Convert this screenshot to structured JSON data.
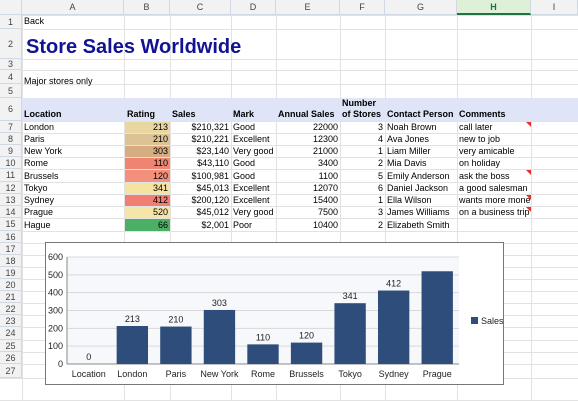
{
  "columns": [
    "A",
    "B",
    "C",
    "D",
    "E",
    "F",
    "G",
    "H",
    "I"
  ],
  "selected_column": "H",
  "rows": [
    "1",
    "2",
    "3",
    "4",
    "5",
    "6",
    "7",
    "8",
    "9",
    "10",
    "11",
    "12",
    "13",
    "14",
    "15",
    "16",
    "17",
    "18",
    "19",
    "20",
    "21",
    "22",
    "23",
    "24",
    "25",
    "26",
    "27"
  ],
  "back_link": "Back",
  "title": "Store Sales Worldwide",
  "subtitle": "Major stores only",
  "headers": {
    "location": "Location",
    "rating": "Rating",
    "sales": "Sales",
    "mark": "Mark",
    "annual_sales": "Annual Sales",
    "stores_line1": "Number",
    "stores_line2": "of Stores",
    "contact": "Contact Person",
    "comments": "Comments"
  },
  "table": [
    {
      "location": "London",
      "rating": "213",
      "sales": "$210,321",
      "mark": "Good",
      "annual": "22000",
      "stores": "3",
      "contact": "Noah Brown",
      "comment": "call later",
      "rating_color": "#e8d7a0",
      "has_note": true
    },
    {
      "location": "Paris",
      "rating": "210",
      "sales": "$210,221",
      "mark": "Excellent",
      "annual": "12300",
      "stores": "4",
      "contact": "Ava Jones",
      "comment": "new to job",
      "rating_color": "#dcc294",
      "has_note": false
    },
    {
      "location": "New York",
      "rating": "303",
      "sales": "$23,140",
      "mark": "Very good",
      "annual": "21000",
      "stores": "1",
      "contact": "Liam Miller",
      "comment": "very amicable",
      "rating_color": "#d6ad80",
      "has_note": false
    },
    {
      "location": "Rome",
      "rating": "110",
      "sales": "$43,110",
      "mark": "Good",
      "annual": "3400",
      "stores": "2",
      "contact": "Mia Davis",
      "comment": "on holiday",
      "rating_color": "#f08472",
      "has_note": false
    },
    {
      "location": "Brussels",
      "rating": "120",
      "sales": "$100,981",
      "mark": "Good",
      "annual": "1100",
      "stores": "5",
      "contact": "Emily Anderson",
      "comment": "ask the boss",
      "rating_color": "#f2907c",
      "has_note": true
    },
    {
      "location": "Tokyo",
      "rating": "341",
      "sales": "$45,013",
      "mark": "Excellent",
      "annual": "12070",
      "stores": "6",
      "contact": "Daniel Jackson",
      "comment": "a good salesman",
      "rating_color": "#f5e4a0",
      "has_note": false
    },
    {
      "location": "Sydney",
      "rating": "412",
      "sales": "$200,120",
      "mark": "Excellent",
      "annual": "15400",
      "stores": "1",
      "contact": "Ella Wilson",
      "comment": "wants more money",
      "rating_color": "#f07e72",
      "has_note": true
    },
    {
      "location": "Prague",
      "rating": "520",
      "sales": "$45,012",
      "mark": "Very good",
      "annual": "7500",
      "stores": "3",
      "contact": "James Williams",
      "comment": "on a business trip",
      "rating_color": "#f5e6a8",
      "has_note": true
    },
    {
      "location": "Hague",
      "rating": "66",
      "sales": "$2,001",
      "mark": "Poor",
      "annual": "10400",
      "stores": "2",
      "contact": "Elizabeth Smith",
      "comment": "",
      "rating_color": "#4caf66",
      "has_note": false
    }
  ],
  "chart_data": {
    "type": "bar",
    "categories": [
      "Location",
      "London",
      "Paris",
      "New York",
      "Rome",
      "Brussels",
      "Tokyo",
      "Sydney",
      "Prague"
    ],
    "series": [
      {
        "name": "Sales",
        "values": [
          0,
          213,
          210,
          303,
          110,
          120,
          341,
          412,
          520
        ]
      }
    ],
    "data_labels": [
      "0",
      "213",
      "210",
      "303",
      "110",
      "120",
      "341",
      "412",
      ""
    ],
    "ylim": [
      0,
      600
    ],
    "yticks": [
      "600",
      "500",
      "400",
      "300",
      "200",
      "100",
      "0"
    ],
    "legend": "right",
    "bar_color": "#2e4d7b"
  }
}
